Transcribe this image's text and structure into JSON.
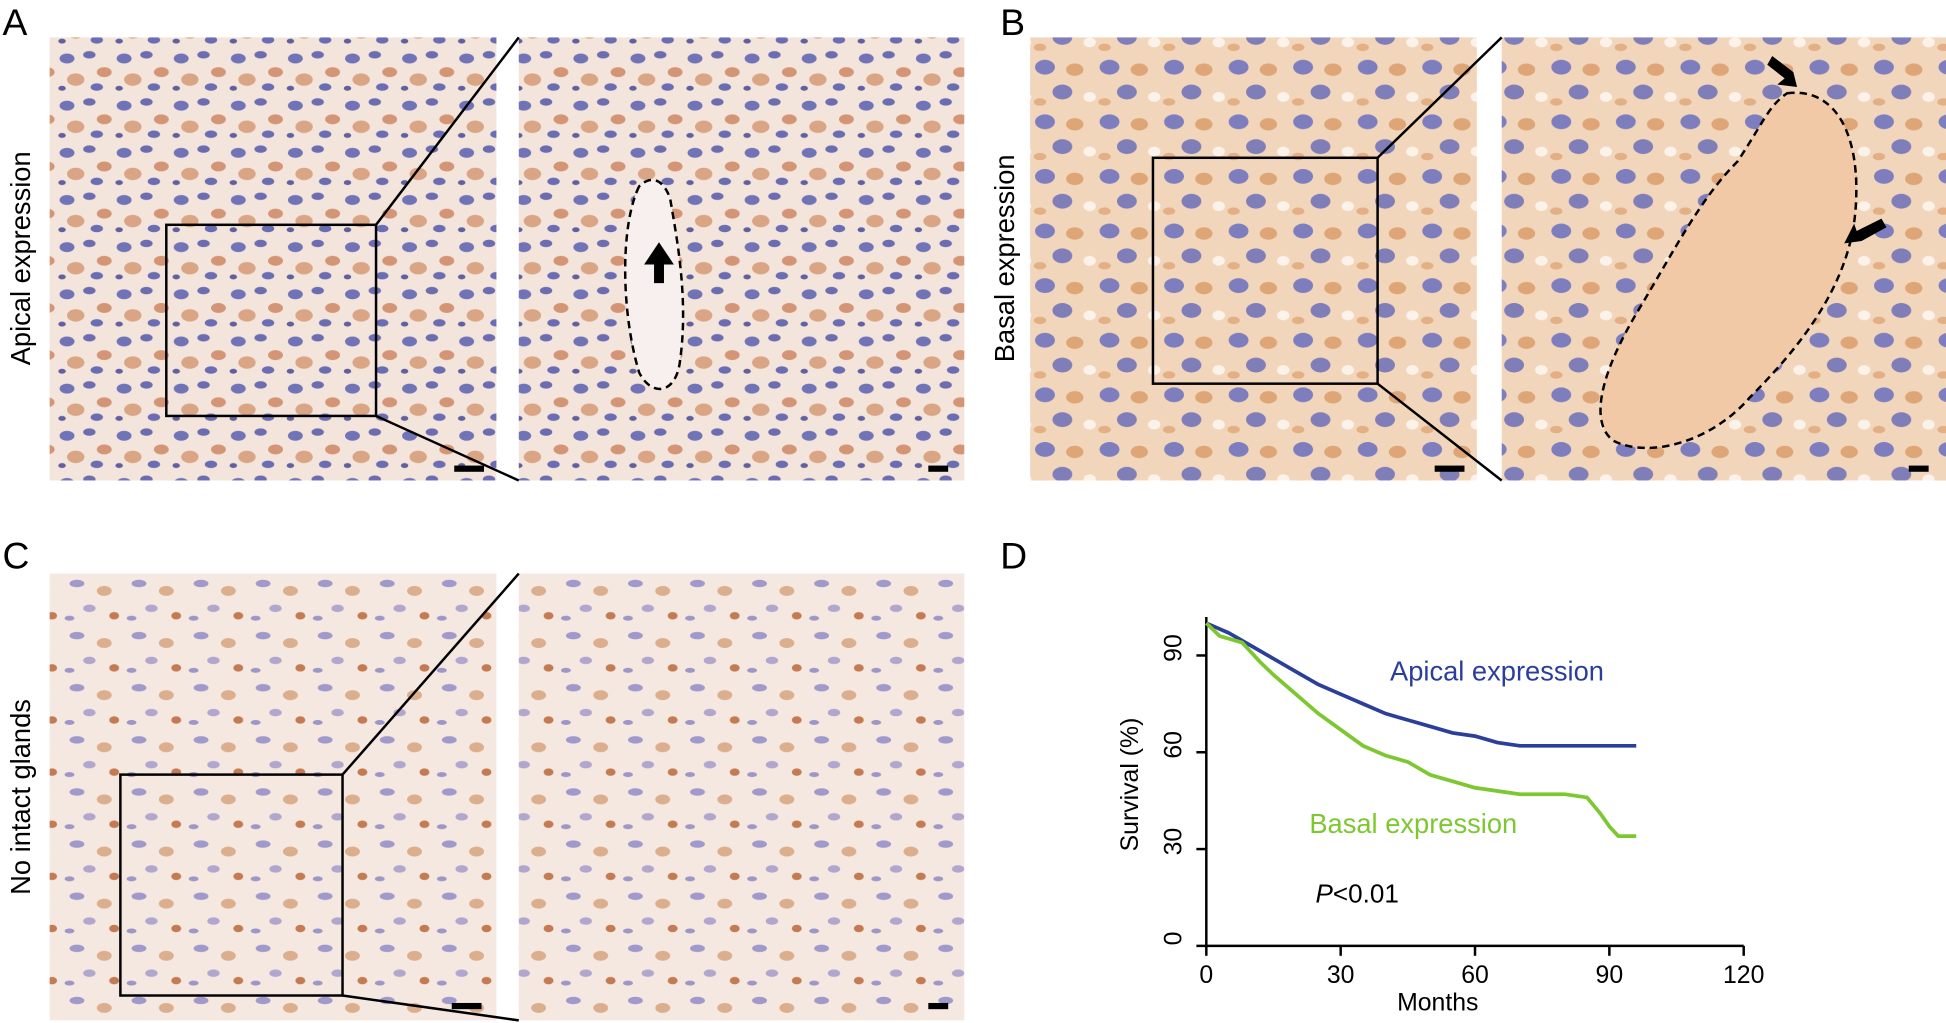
{
  "panels": [
    {
      "label": "A",
      "caption": "Apical expression"
    },
    {
      "label": "B",
      "caption": "Basal expression"
    },
    {
      "label": "C",
      "caption": "No intact glands"
    },
    {
      "label": "D"
    }
  ],
  "chart_data": {
    "type": "line",
    "xlabel": "Months",
    "ylabel": "Survival (%)",
    "xlim": [
      0,
      120
    ],
    "xticks": [
      0,
      30,
      60,
      90,
      120
    ],
    "ylim": [
      0,
      100
    ],
    "yticks": [
      0,
      30,
      60,
      90
    ],
    "p_symbol": "P",
    "p_text": "<0.01",
    "series": [
      {
        "name": "Apical expression",
        "color": "#2b3e9a",
        "x": [
          0,
          5,
          10,
          15,
          20,
          25,
          30,
          35,
          40,
          45,
          50,
          55,
          60,
          65,
          70,
          80,
          96
        ],
        "values": [
          100,
          97,
          93,
          89,
          85,
          81,
          78,
          75,
          72,
          70,
          68,
          66,
          65,
          63,
          62,
          62,
          62
        ]
      },
      {
        "name": "Basal expression",
        "color": "#7dc831",
        "x": [
          0,
          3,
          8,
          12,
          15,
          20,
          25,
          30,
          35,
          40,
          45,
          50,
          55,
          60,
          65,
          70,
          80,
          85,
          88,
          90,
          92,
          96
        ],
        "values": [
          100,
          96,
          94,
          88,
          84,
          78,
          72,
          67,
          62,
          59,
          57,
          53,
          51,
          49,
          48,
          47,
          47,
          46,
          41,
          37,
          34,
          34
        ]
      }
    ]
  }
}
